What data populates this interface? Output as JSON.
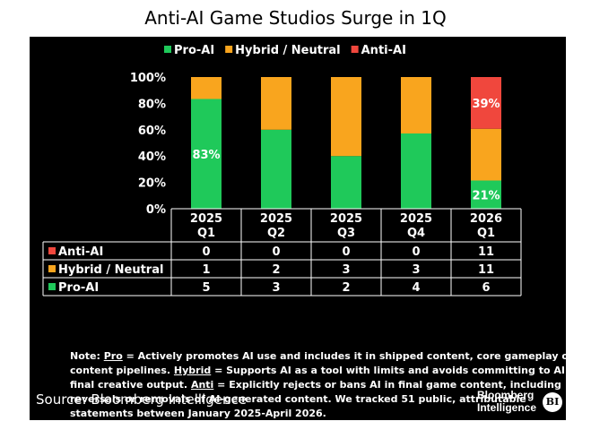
{
  "title": "Anti-AI Game Studios Surge in 1Q",
  "colors": {
    "pro": "#1fc95a",
    "hybrid": "#f9a51e",
    "anti": "#f0473d",
    "background": "#000000",
    "text": "#ffffff"
  },
  "chart_data": {
    "type": "bar",
    "stacked": true,
    "title": "Anti-AI Game Studios Surge in 1Q",
    "categories": [
      [
        "2025",
        "Q1"
      ],
      [
        "2025",
        "Q2"
      ],
      [
        "2025",
        "Q3"
      ],
      [
        "2025",
        "Q4"
      ],
      [
        "2026",
        "Q1"
      ]
    ],
    "ylim": [
      0,
      100
    ],
    "yticks": [
      "0%",
      "20%",
      "40%",
      "60%",
      "80%",
      "100%"
    ],
    "legend_position": "top",
    "series": [
      {
        "name": "Pro-AI",
        "key": "pro",
        "counts": [
          5,
          3,
          2,
          4,
          6
        ]
      },
      {
        "name": "Hybrid / Neutral",
        "key": "hybrid",
        "counts": [
          1,
          2,
          3,
          3,
          11
        ]
      },
      {
        "name": "Anti-AI",
        "key": "anti",
        "counts": [
          0,
          0,
          0,
          0,
          11
        ]
      }
    ],
    "data_labels": [
      {
        "series": "pro",
        "index": 0,
        "text": "83%"
      },
      {
        "series": "pro",
        "index": 4,
        "text": "21%"
      },
      {
        "series": "anti",
        "index": 4,
        "text": "39%"
      }
    ],
    "table_rows": [
      {
        "label": "Anti-AI",
        "key": "anti",
        "values": [
          "0",
          "0",
          "0",
          "0",
          "11"
        ]
      },
      {
        "label": "Hybrid / Neutral",
        "key": "hybrid",
        "values": [
          "1",
          "2",
          "3",
          "3",
          "11"
        ]
      },
      {
        "label": "Pro-AI",
        "key": "pro",
        "values": [
          "5",
          "3",
          "2",
          "4",
          "6"
        ]
      }
    ]
  },
  "note": {
    "prefix": "Note: ",
    "pro_term": "Pro",
    "pro_text": " = Actively promotes AI use and includes it in shipped content, core gameplay or content pipelines. ",
    "hybrid_term": "Hybrid",
    "hybrid_text": " = Supports AI as a tool with limits and avoids committing to AI in final creative output. ",
    "anti_term": "Anti",
    "anti_text": " = Explicitly rejects or bans AI in final game content, including reversals or removals of AI-generated content. We tracked 51 public, attributable statements between January 2025-April 2026."
  },
  "source": "Source: Bloomberg Intelligence",
  "logo": {
    "line1": "Bloomberg",
    "line2": "Intelligence",
    "badge": "BI"
  }
}
